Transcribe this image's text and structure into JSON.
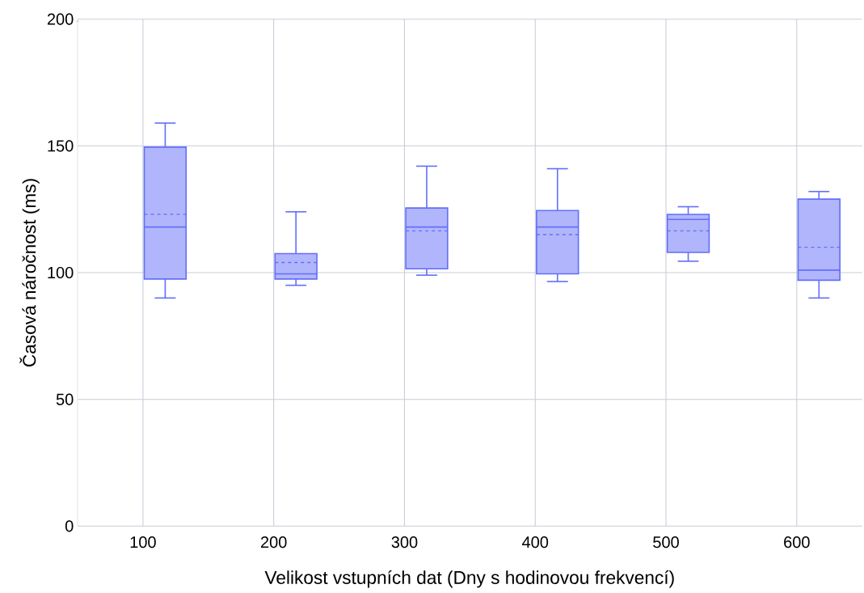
{
  "chart_data": {
    "type": "box",
    "xlabel": "Velikost vstupních dat (Dny s hodinovou frekvencí)",
    "ylabel": "Časová náročnost (ms)",
    "categories": [
      "100",
      "200",
      "300",
      "400",
      "500",
      "600"
    ],
    "color": "#636efa",
    "boxes": [
      {
        "low": 90,
        "q1": 97.5,
        "median": 118,
        "q3": 149.5,
        "high": 159,
        "mean": 123
      },
      {
        "low": 95,
        "q1": 97.5,
        "median": 99.5,
        "q3": 107.5,
        "high": 124,
        "mean": 104
      },
      {
        "low": 99,
        "q1": 101.5,
        "median": 118,
        "q3": 125.5,
        "high": 142,
        "mean": 116.5
      },
      {
        "low": 96.5,
        "q1": 99.5,
        "median": 118,
        "q3": 124.5,
        "high": 141,
        "mean": 115
      },
      {
        "low": 104.5,
        "q1": 108,
        "median": 121,
        "q3": 123,
        "high": 126,
        "mean": 116.5
      },
      {
        "low": 90,
        "q1": 97,
        "median": 101,
        "q3": 129,
        "high": 132,
        "mean": 110
      }
    ],
    "ylim": [
      0,
      200
    ],
    "yticks": [
      0,
      50,
      100,
      150,
      200
    ],
    "grid": true
  }
}
